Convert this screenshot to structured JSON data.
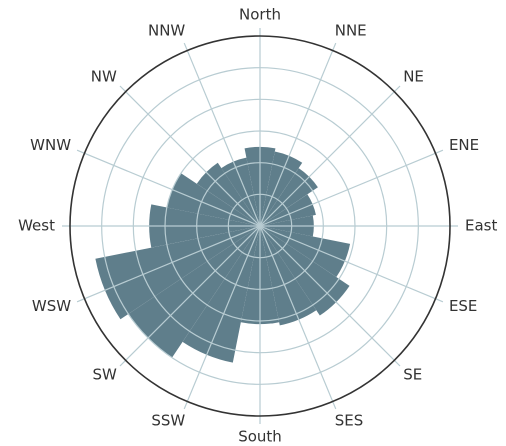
{
  "chart_data": {
    "type": "rose",
    "categories": [
      "North",
      "NNE",
      "NE",
      "ENE",
      "East",
      "ESE",
      "SE",
      "SES",
      "South",
      "SSW",
      "SW",
      "WSW",
      "West",
      "WNW",
      "NW",
      "NNW"
    ],
    "values": [
      2.5,
      2.4,
      2.2,
      1.8,
      1.7,
      2.9,
      3.4,
      3.2,
      3.1,
      4.4,
      5.0,
      5.3,
      3.5,
      3.0,
      2.4,
      2.2
    ],
    "color": "#5f7e8b",
    "ylim": [
      0,
      6
    ],
    "yticks": [
      1,
      2,
      3,
      4,
      5,
      6
    ],
    "grid": true
  }
}
